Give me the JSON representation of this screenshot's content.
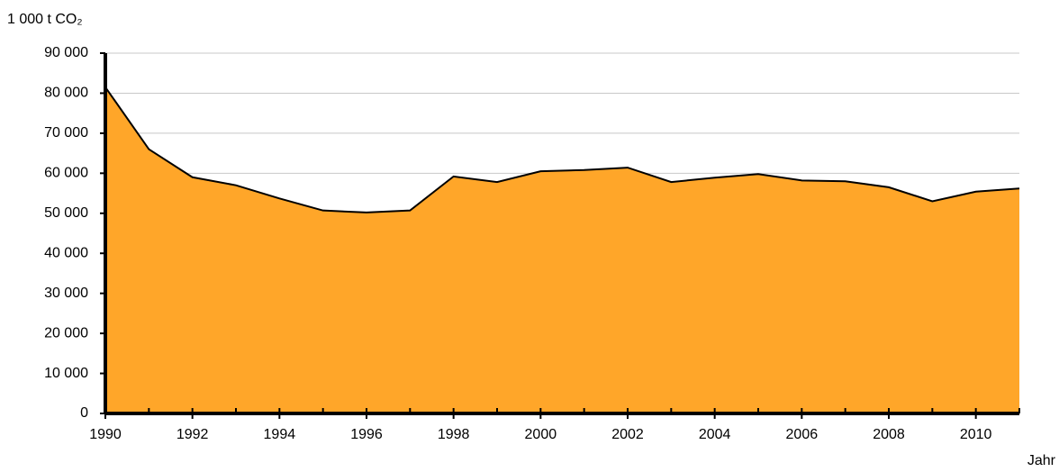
{
  "chart_data": {
    "type": "area",
    "ylabel": "1 000 t CO₂",
    "xlabel": "Jahr",
    "x": [
      1990,
      1991,
      1992,
      1993,
      1994,
      1995,
      1996,
      1997,
      1998,
      1999,
      2000,
      2001,
      2002,
      2003,
      2004,
      2005,
      2006,
      2007,
      2008,
      2009,
      2010,
      2011
    ],
    "series": [
      {
        "color": "#ffa629",
        "values": [
          81500,
          66000,
          59000,
          57000,
          53700,
          50700,
          50200,
          50700,
          59200,
          57800,
          60500,
          60800,
          61400,
          57800,
          58900,
          59800,
          58200,
          58000,
          56500,
          53000,
          55400,
          56200
        ]
      }
    ],
    "xlim": [
      1990,
      2011
    ],
    "xticks": [
      1990,
      1992,
      1994,
      1996,
      1998,
      2000,
      2002,
      2004,
      2006,
      2008,
      2010
    ],
    "ylim": [
      0,
      90000
    ],
    "yticks": [
      0,
      {
        "value": 10000,
        "label": "10 000"
      },
      {
        "value": 20000,
        "label": "20 000"
      },
      {
        "value": 30000,
        "label": "30 000"
      },
      {
        "value": 40000,
        "label": "40 000"
      },
      {
        "value": 50000,
        "label": "50 000"
      },
      {
        "value": 60000,
        "label": "60 000"
      },
      {
        "value": 70000,
        "label": "70 000"
      },
      {
        "value": 80000,
        "label": "80 000"
      },
      {
        "value": 90000,
        "label": "90 000"
      }
    ],
    "grid": true
  }
}
